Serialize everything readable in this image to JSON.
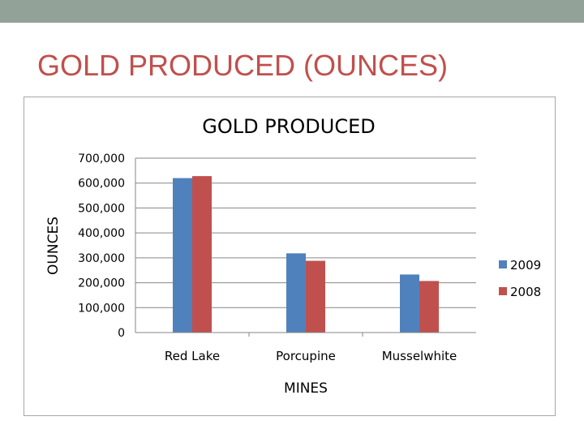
{
  "slide": {
    "title": "GOLD PRODUCED (OUNCES)",
    "top_bar_color": "#93a299",
    "title_color": "#c0504d"
  },
  "chart_data": {
    "type": "bar",
    "title": "GOLD PRODUCED",
    "xlabel": "MINES",
    "ylabel": "OUNCES",
    "categories": [
      "Red Lake",
      "Porcupine",
      "Musselwhite"
    ],
    "series": [
      {
        "name": "2009",
        "color": "#4f81bd",
        "values": [
          620000,
          318000,
          233000
        ]
      },
      {
        "name": "2008",
        "color": "#c0504d",
        "values": [
          628000,
          288000,
          207000
        ]
      }
    ],
    "ylim": [
      0,
      700000
    ],
    "yticks": [
      0,
      100000,
      200000,
      300000,
      400000,
      500000,
      600000,
      700000
    ],
    "ytick_labels": [
      "0",
      "100,000",
      "200,000",
      "300,000",
      "400,000",
      "500,000",
      "600,000",
      "700,000"
    ],
    "grid": true,
    "legend_position": "right"
  }
}
